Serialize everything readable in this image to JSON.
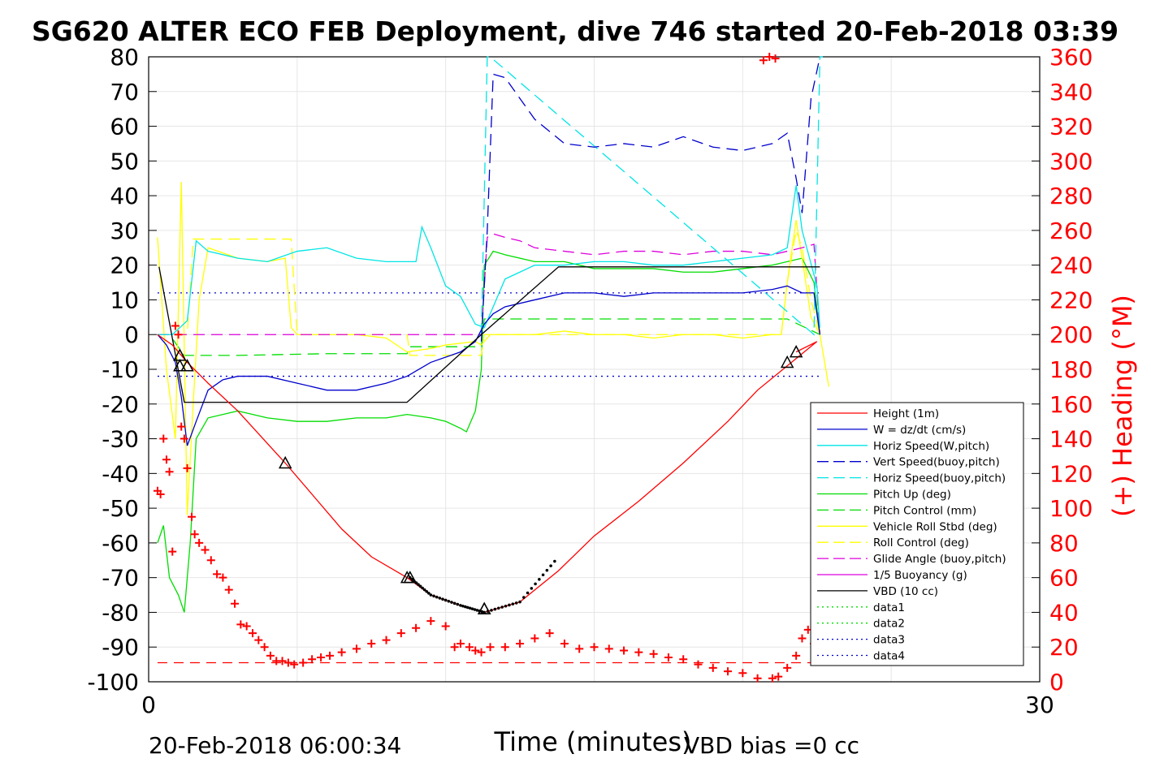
{
  "colors": {
    "height": "#ff0000",
    "w": "#0000cc",
    "horiz_w": "#00e5e5",
    "vert_buoy": "#0000cc",
    "horiz_buoy": "#00e5e5",
    "pitch_up": "#00dd00",
    "pitch_ctrl": "#00dd00",
    "roll": "#ffff00",
    "roll_ctrl": "#ffff00",
    "glide": "#dd00dd",
    "buoy": "#dd00dd",
    "vbd": "#000000",
    "heading": "#ff0000",
    "data3": "#0000cc"
  },
  "chart_data": {
    "type": "line",
    "title": "SG620 ALTER ECO FEB Deployment, dive 746 started 20-Feb-2018 03:39",
    "xlabel": "Time (minutes)",
    "ylabel": "",
    "y2label": "(+) Heading (°M)",
    "xlim": [
      0,
      30
    ],
    "ylim": [
      -100,
      80
    ],
    "y2lim": [
      0,
      360
    ],
    "x_ticks": [
      "0",
      "30"
    ],
    "y_ticks": [
      "80",
      "70",
      "60",
      "50",
      "40",
      "30",
      "20",
      "10",
      "0",
      "-10",
      "-20",
      "-30",
      "-40",
      "-50",
      "-60",
      "-70",
      "-80",
      "-90",
      "-100"
    ],
    "y2_ticks": [
      "360",
      "340",
      "320",
      "300",
      "280",
      "260",
      "240",
      "220",
      "200",
      "180",
      "160",
      "140",
      "120",
      "100",
      "80",
      "60",
      "40",
      "20",
      "0"
    ],
    "footer_left": "20-Feb-2018 06:00:34",
    "footer_right": "VBD bias =0 cc",
    "legend_position": "bottom-right",
    "legend": [
      "Height (1m)",
      "W = dz/dt (cm/s)",
      "Horiz Speed(W,pitch)",
      "Vert Speed(buoy,pitch)",
      "Horiz Speed(buoy,pitch)",
      "Pitch Up (deg)",
      "Pitch Control (mm)",
      "Vehicle Roll Stbd (deg)",
      "Roll Control (deg)",
      "Glide Angle (buoy,pitch)",
      "1/5 Buoyancy (g)",
      "VBD (10 cc)",
      "data1",
      "data2",
      "data3",
      "data4"
    ],
    "series": {
      "height": {
        "x": [
          0.3,
          0.8,
          1.3,
          2,
          3,
          4.6,
          5.5,
          6.5,
          7.5,
          8.7,
          9.5,
          10.5,
          11.3,
          12.5,
          13.8,
          15,
          16.5,
          18,
          19.5,
          20.5,
          21.5,
          22.5,
          21.8
        ],
        "y": [
          0,
          -3,
          -8,
          -14,
          -22,
          -37,
          -46,
          -56,
          -64,
          -70,
          -75,
          -78,
          -80,
          -77,
          -68,
          -58,
          -48,
          -37,
          -25,
          -16,
          -9,
          -2,
          -5
        ]
      },
      "w": {
        "x": [
          0.3,
          0.6,
          0.9,
          1.1,
          1.3,
          1.6,
          2,
          2.5,
          3,
          4,
          5,
          6,
          7,
          8,
          8.7,
          9.5,
          10.5,
          11,
          11.3,
          11.6,
          12,
          13,
          14,
          15,
          16,
          17,
          18,
          19,
          20,
          21,
          21.5,
          22,
          22.4,
          22.6
        ],
        "y": [
          0,
          -3,
          -8,
          -18,
          -32,
          -25,
          -16,
          -13,
          -12,
          -12,
          -14,
          -16,
          -16,
          -14,
          -12,
          -8,
          -5,
          -2,
          3,
          6,
          8,
          10,
          12,
          12,
          11,
          12,
          12,
          12,
          12,
          13,
          14,
          12,
          12,
          0
        ]
      },
      "horiz_w": {
        "x": [
          0.3,
          0.8,
          1.3,
          1.6,
          2,
          3,
          4,
          5,
          6,
          7,
          8,
          9,
          9.2,
          9.5,
          10,
          10.5,
          11,
          11.3,
          11.6,
          12,
          13,
          14,
          15,
          16,
          17,
          18,
          19,
          20,
          21,
          21.5,
          21.8,
          22,
          22.5,
          22.6
        ],
        "y": [
          0,
          0,
          4,
          27,
          24,
          22,
          21,
          24,
          25,
          22,
          21,
          21,
          31,
          25,
          14,
          11,
          3,
          2,
          8,
          16,
          20,
          20,
          21,
          21,
          20,
          20,
          21,
          22,
          23,
          25,
          43,
          30,
          14,
          2
        ]
      },
      "vert_buoy": {
        "x": [
          11.2,
          11.4,
          11.6,
          12,
          12.5,
          13,
          14,
          15,
          16,
          17,
          18,
          19,
          20,
          21,
          21.5,
          21.8,
          22,
          22.3,
          22.6
        ],
        "y": [
          -2,
          30,
          75,
          74,
          68,
          62,
          55,
          54,
          55,
          54,
          57,
          54,
          53,
          55,
          58,
          45,
          35,
          68,
          80
        ]
      },
      "horiz_buoy": {
        "x": [
          11.2,
          11.3,
          11.4,
          11.5,
          22.4,
          22.6,
          22.7
        ],
        "y": [
          0,
          40,
          80,
          80,
          0,
          80,
          80
        ]
      },
      "pitch_up": {
        "x": [
          0.3,
          0.5,
          0.7,
          1,
          1.2,
          1.4,
          1.6,
          2,
          3,
          4,
          5,
          6,
          7,
          8,
          8.7,
          9.5,
          10,
          10.5,
          10.7,
          11,
          11.2,
          11.3,
          11.6,
          12,
          13,
          14,
          15,
          16,
          17,
          18,
          19,
          20,
          21,
          21.5,
          22,
          22.4,
          22.6
        ],
        "y": [
          -60,
          -55,
          -70,
          -75,
          -80,
          -60,
          -30,
          -24,
          -22,
          -24,
          -25,
          -25,
          -24,
          -24,
          -23,
          -24,
          -25,
          -27,
          -28,
          -22,
          -10,
          20,
          24,
          23,
          21,
          21,
          19,
          19,
          19,
          18,
          18,
          19,
          20,
          21,
          22,
          15,
          0
        ]
      },
      "pitch_ctrl": {
        "x": [
          0.3,
          0.7,
          1.2,
          3,
          6,
          8.7,
          8.8,
          11.2,
          11.3,
          21.5,
          22.6
        ],
        "y": [
          0,
          0,
          -6,
          -6,
          -5.5,
          -5.5,
          -3.5,
          -3.5,
          4.5,
          4.5,
          0
        ]
      },
      "roll": {
        "x": [
          0.3,
          0.6,
          0.9,
          1.1,
          1.3,
          1.5,
          1.7,
          2,
          3,
          4,
          4.6,
          4.8,
          5,
          6,
          7,
          8,
          8.7,
          9.5,
          10,
          11,
          11.2,
          11.5,
          12,
          13,
          14,
          15,
          16,
          17,
          18,
          19,
          20,
          21,
          21.3,
          21.5,
          21.8,
          22,
          22.3,
          22.6,
          22.9
        ],
        "y": [
          28,
          -10,
          -30,
          44,
          -52,
          -20,
          10,
          25,
          22,
          21,
          22,
          2,
          0,
          0,
          0,
          -1,
          -5,
          -4,
          -3,
          -2,
          -3,
          0,
          0,
          0,
          1,
          0,
          0,
          -1,
          0,
          0,
          -1,
          0,
          0,
          15,
          33,
          22,
          5,
          0,
          -15
        ]
      },
      "roll_ctrl": {
        "x": [
          0.3,
          1.3,
          1.5,
          4.8,
          5,
          8.7,
          8.8,
          11.2,
          11.3,
          21.3,
          21.5,
          21.8,
          22,
          22.3,
          22.6
        ],
        "y": [
          0,
          0,
          27.5,
          27.5,
          0,
          0,
          -6,
          -6,
          0,
          0,
          15,
          30,
          25,
          10,
          0
        ]
      },
      "glide": {
        "x": [
          0.3,
          11.2,
          11.4,
          11.6,
          12,
          12.5,
          13,
          14,
          15,
          16,
          17,
          18,
          19,
          20,
          21,
          22,
          22.4,
          22.6
        ],
        "y": [
          0,
          0,
          28,
          29,
          28,
          27,
          25,
          24,
          23,
          24,
          24,
          23,
          24,
          24,
          23,
          25,
          26,
          0
        ]
      },
      "vbd": {
        "x": [
          0.35,
          1.2,
          8.7,
          11.2,
          13.8,
          22.6
        ],
        "y": [
          19.5,
          -19.5,
          -19.5,
          0,
          19.5,
          19.5
        ]
      },
      "data3_upper": {
        "x": [
          0.3,
          22.6
        ],
        "y": [
          12,
          12
        ]
      },
      "data3_lower": {
        "x": [
          0.3,
          22.6
        ],
        "y": [
          -12,
          -12
        ]
      },
      "heading_ref": {
        "x": [
          0.3,
          22.6
        ],
        "y": [
          11,
          11
        ]
      },
      "heading": {
        "x": [
          0.3,
          0.4,
          0.5,
          0.6,
          0.7,
          0.8,
          0.9,
          1,
          1.1,
          1.2,
          1.3,
          1.45,
          1.55,
          1.7,
          1.9,
          2.1,
          2.3,
          2.5,
          2.7,
          2.9,
          3.1,
          3.3,
          3.5,
          3.7,
          3.9,
          4.1,
          4.3,
          4.5,
          4.7,
          4.9,
          5.2,
          5.5,
          5.8,
          6.1,
          6.5,
          7,
          7.5,
          8,
          8.5,
          9,
          9.5,
          10,
          10.3,
          10.5,
          10.8,
          11,
          11.2,
          11.5,
          12,
          12.5,
          13,
          13.5,
          14,
          14.5,
          15,
          15.5,
          16,
          16.5,
          17,
          17.5,
          18,
          18.5,
          19,
          19.5,
          20,
          20.5,
          21,
          21.2,
          21.5,
          21.8,
          22,
          22.2,
          22.4,
          22.6,
          20.7,
          20.9,
          21.1
        ],
        "y": [
          110,
          108,
          140,
          128,
          121,
          75,
          205,
          200,
          147,
          140,
          123,
          95,
          85,
          80,
          76,
          70,
          62,
          60,
          53,
          45,
          33,
          32,
          28,
          24,
          20,
          15,
          12,
          12,
          11,
          10,
          11,
          13,
          14,
          15,
          17,
          19,
          22,
          24,
          28,
          31,
          35,
          32,
          20,
          22,
          20,
          18,
          17,
          20,
          20,
          22,
          25,
          28,
          22,
          19,
          20,
          19,
          18,
          17,
          16,
          14,
          13,
          10,
          8,
          6,
          5,
          2,
          2,
          3,
          8,
          15,
          25,
          30,
          22,
          36,
          358,
          360,
          359
        ]
      },
      "markers": {
        "x": [
          1.05,
          1.05,
          1.3,
          4.6,
          8.7,
          8.8,
          11.3,
          11.3,
          21.5,
          21.8
        ],
        "y": [
          -6,
          -9,
          -9,
          -37,
          -70,
          -70,
          -79,
          -79,
          -8,
          -5
        ]
      },
      "dotted_run": {
        "x": [
          8.8,
          9.5,
          10.5,
          11.3,
          12.5,
          13.8
        ],
        "y": [
          -70,
          -75,
          -78,
          -80,
          -77,
          -64
        ]
      }
    }
  }
}
